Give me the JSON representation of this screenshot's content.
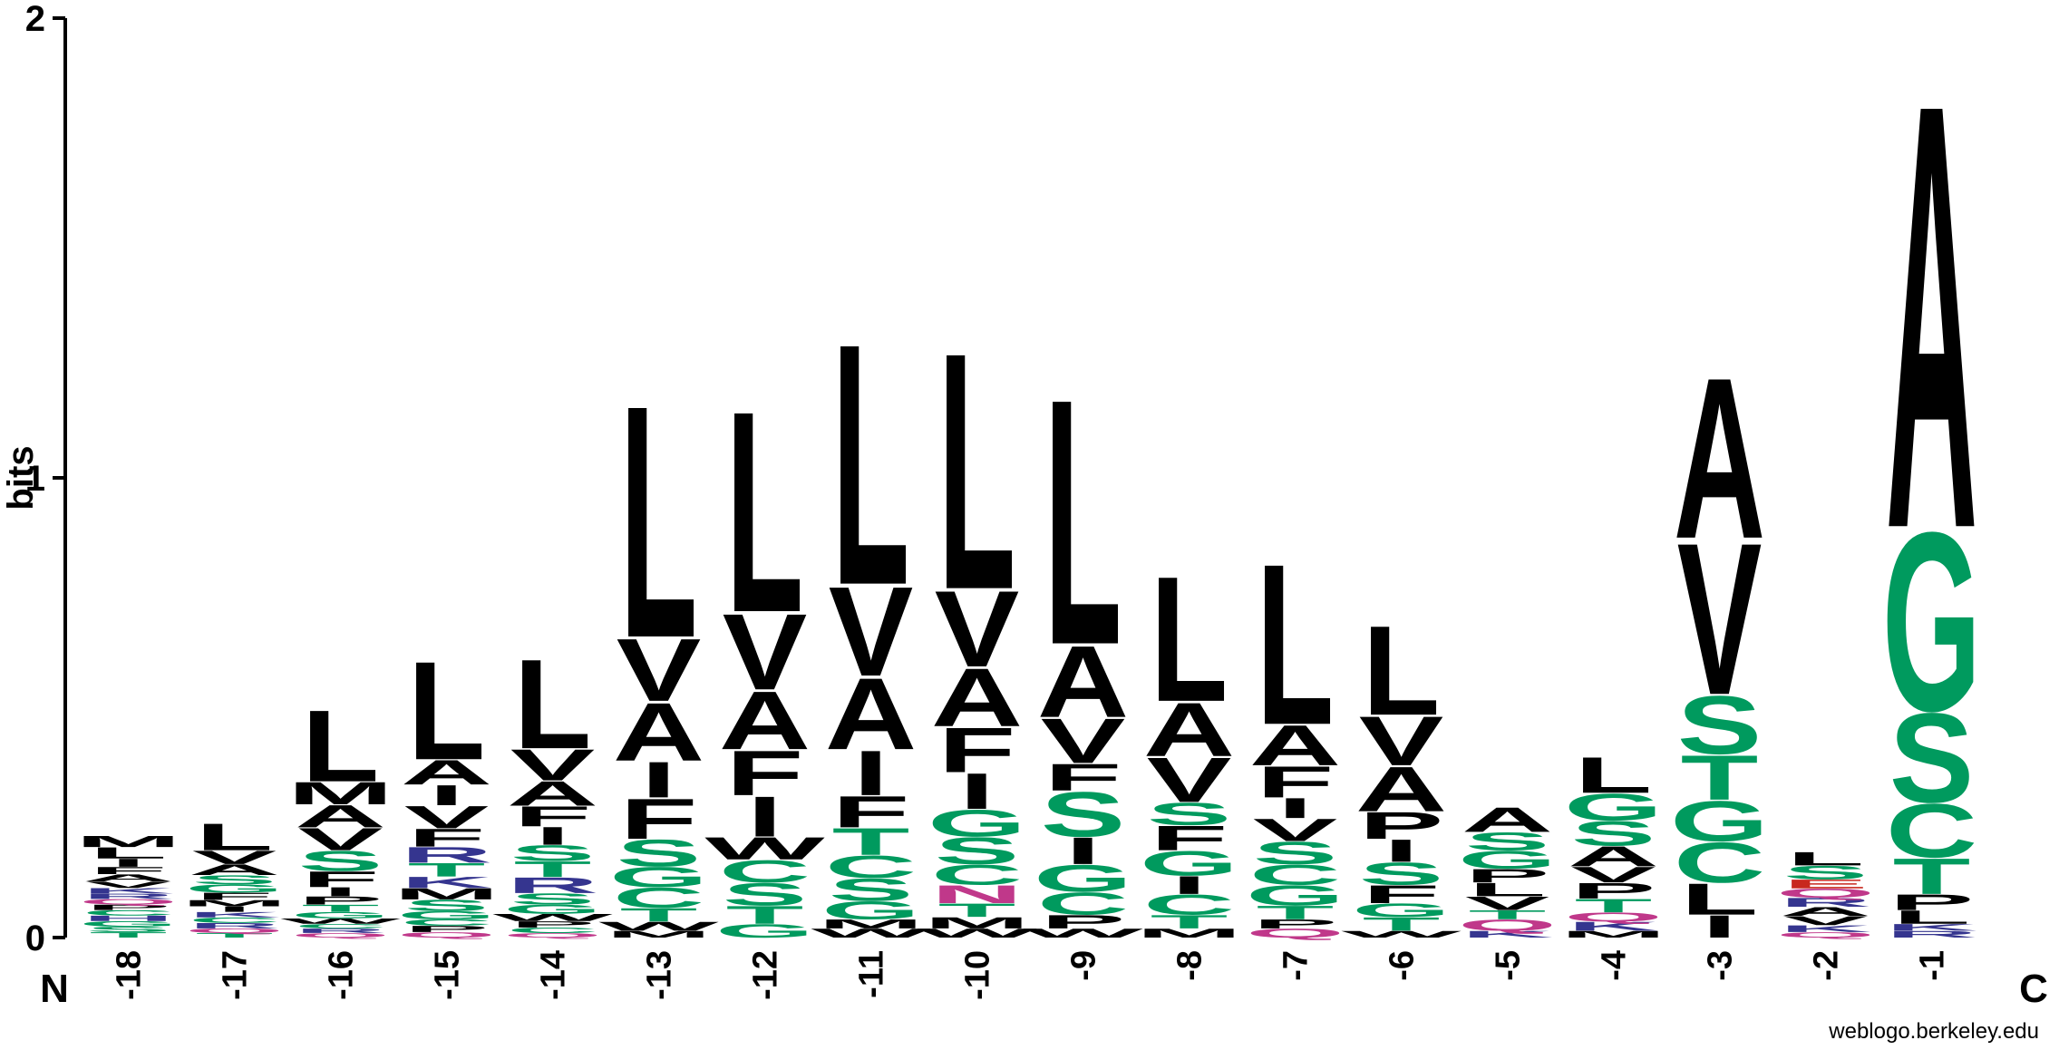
{
  "chart_data": {
    "type": "sequence_logo",
    "ylabel": "bits",
    "ylim": [
      0,
      2
    ],
    "yticks": [
      "0",
      "1",
      "2"
    ],
    "x_left_label": "N",
    "x_right_label": "C",
    "positions": [
      "-18",
      "-17",
      "-16",
      "-15",
      "-14",
      "-13",
      "-12",
      "-11",
      "-10",
      "-9",
      "-8",
      "-7",
      "-6",
      "-5",
      "-4",
      "-3",
      "-2",
      "-1"
    ],
    "colors": {
      "hydrophobic": "#000000",
      "polar": "#009a5e",
      "basic": "#35358f",
      "acidic": "#c8281e",
      "amide": "#c0388a"
    },
    "residue_class": {
      "A": "hydrophobic",
      "V": "hydrophobic",
      "L": "hydrophobic",
      "I": "hydrophobic",
      "F": "hydrophobic",
      "M": "hydrophobic",
      "W": "hydrophobic",
      "P": "hydrophobic",
      "G": "polar",
      "S": "polar",
      "T": "polar",
      "C": "polar",
      "Y": "polar",
      "K": "basic",
      "R": "basic",
      "H": "basic",
      "D": "acidic",
      "E": "acidic",
      "N": "amide",
      "Q": "amide"
    },
    "stacks": [
      {
        "position": "-18",
        "letters": [
          {
            "aa": "T",
            "h": 0.012
          },
          {
            "aa": "S",
            "h": 0.012
          },
          {
            "aa": "G",
            "h": 0.012
          },
          {
            "aa": "H",
            "h": 0.012
          },
          {
            "aa": "C",
            "h": 0.012
          },
          {
            "aa": "P",
            "h": 0.012
          },
          {
            "aa": "Q",
            "h": 0.012
          },
          {
            "aa": "R",
            "h": 0.012
          },
          {
            "aa": "K",
            "h": 0.012
          },
          {
            "aa": "V",
            "h": 0.014
          },
          {
            "aa": "A",
            "h": 0.016
          },
          {
            "aa": "F",
            "h": 0.016
          },
          {
            "aa": "I",
            "h": 0.018
          },
          {
            "aa": "L",
            "h": 0.025
          },
          {
            "aa": "M",
            "h": 0.025
          }
        ]
      },
      {
        "position": "-17",
        "letters": [
          {
            "aa": "T",
            "h": 0.01
          },
          {
            "aa": "Q",
            "h": 0.01
          },
          {
            "aa": "R",
            "h": 0.012
          },
          {
            "aa": "C",
            "h": 0.012
          },
          {
            "aa": "K",
            "h": 0.012
          },
          {
            "aa": "I",
            "h": 0.012
          },
          {
            "aa": "M",
            "h": 0.014
          },
          {
            "aa": "F",
            "h": 0.016
          },
          {
            "aa": "G",
            "h": 0.018
          },
          {
            "aa": "S",
            "h": 0.02
          },
          {
            "aa": "A",
            "h": 0.024
          },
          {
            "aa": "V",
            "h": 0.03
          },
          {
            "aa": "L",
            "h": 0.06
          }
        ]
      },
      {
        "position": "-16",
        "letters": [
          {
            "aa": "Q",
            "h": 0.01
          },
          {
            "aa": "R",
            "h": 0.01
          },
          {
            "aa": "C",
            "h": 0.01
          },
          {
            "aa": "W",
            "h": 0.012
          },
          {
            "aa": "G",
            "h": 0.014
          },
          {
            "aa": "T",
            "h": 0.016
          },
          {
            "aa": "P",
            "h": 0.018
          },
          {
            "aa": "I",
            "h": 0.02
          },
          {
            "aa": "F",
            "h": 0.035
          },
          {
            "aa": "S",
            "h": 0.045
          },
          {
            "aa": "V",
            "h": 0.05
          },
          {
            "aa": "A",
            "h": 0.05
          },
          {
            "aa": "M",
            "h": 0.05
          },
          {
            "aa": "L",
            "h": 0.16
          }
        ]
      },
      {
        "position": "-15",
        "letters": [
          {
            "aa": "Q",
            "h": 0.012
          },
          {
            "aa": "P",
            "h": 0.014
          },
          {
            "aa": "C",
            "h": 0.014
          },
          {
            "aa": "G",
            "h": 0.018
          },
          {
            "aa": "S",
            "h": 0.025
          },
          {
            "aa": "M",
            "h": 0.025
          },
          {
            "aa": "K",
            "h": 0.025
          },
          {
            "aa": "T",
            "h": 0.03
          },
          {
            "aa": "R",
            "h": 0.035
          },
          {
            "aa": "F",
            "h": 0.04
          },
          {
            "aa": "V",
            "h": 0.05
          },
          {
            "aa": "I",
            "h": 0.045
          },
          {
            "aa": "A",
            "h": 0.055
          },
          {
            "aa": "L",
            "h": 0.22
          }
        ]
      },
      {
        "position": "-14",
        "letters": [
          {
            "aa": "Q",
            "h": 0.01
          },
          {
            "aa": "C",
            "h": 0.012
          },
          {
            "aa": "P",
            "h": 0.014
          },
          {
            "aa": "W",
            "h": 0.016
          },
          {
            "aa": "G",
            "h": 0.02
          },
          {
            "aa": "S",
            "h": 0.025
          },
          {
            "aa": "R",
            "h": 0.035
          },
          {
            "aa": "T",
            "h": 0.035
          },
          {
            "aa": "S",
            "h": 0.035
          },
          {
            "aa": "I",
            "h": 0.04
          },
          {
            "aa": "F",
            "h": 0.045
          },
          {
            "aa": "A",
            "h": 0.055
          },
          {
            "aa": "V",
            "h": 0.07
          },
          {
            "aa": "L",
            "h": 0.2
          }
        ]
      },
      {
        "position": "-13",
        "letters": [
          {
            "aa": "M",
            "h": 0.015
          },
          {
            "aa": "W",
            "h": 0.02
          },
          {
            "aa": "T",
            "h": 0.03
          },
          {
            "aa": "C",
            "h": 0.045
          },
          {
            "aa": "G",
            "h": 0.045
          },
          {
            "aa": "S",
            "h": 0.06
          },
          {
            "aa": "F",
            "h": 0.09
          },
          {
            "aa": "I",
            "h": 0.08
          },
          {
            "aa": "A",
            "h": 0.13
          },
          {
            "aa": "V",
            "h": 0.14
          },
          {
            "aa": "L",
            "h": 0.52
          }
        ]
      },
      {
        "position": "-12",
        "letters": [
          {
            "aa": "G",
            "h": 0.03
          },
          {
            "aa": "T",
            "h": 0.04
          },
          {
            "aa": "S",
            "h": 0.05
          },
          {
            "aa": "C",
            "h": 0.05
          },
          {
            "aa": "W",
            "h": 0.05
          },
          {
            "aa": "I",
            "h": 0.09
          },
          {
            "aa": "F",
            "h": 0.1
          },
          {
            "aa": "A",
            "h": 0.13
          },
          {
            "aa": "V",
            "h": 0.17
          },
          {
            "aa": "L",
            "h": 0.45
          }
        ]
      },
      {
        "position": "-11",
        "letters": [
          {
            "aa": "W",
            "h": 0.02
          },
          {
            "aa": "M",
            "h": 0.02
          },
          {
            "aa": "G",
            "h": 0.04
          },
          {
            "aa": "S",
            "h": 0.05
          },
          {
            "aa": "C",
            "h": 0.05
          },
          {
            "aa": "T",
            "h": 0.06
          },
          {
            "aa": "F",
            "h": 0.07
          },
          {
            "aa": "I",
            "h": 0.1
          },
          {
            "aa": "A",
            "h": 0.16
          },
          {
            "aa": "V",
            "h": 0.2
          },
          {
            "aa": "L",
            "h": 0.54
          }
        ]
      },
      {
        "position": "-10",
        "letters": [
          {
            "aa": "W",
            "h": 0.02
          },
          {
            "aa": "M",
            "h": 0.025
          },
          {
            "aa": "T",
            "h": 0.03
          },
          {
            "aa": "N",
            "h": 0.04
          },
          {
            "aa": "C",
            "h": 0.045
          },
          {
            "aa": "S",
            "h": 0.06
          },
          {
            "aa": "G",
            "h": 0.06
          },
          {
            "aa": "I",
            "h": 0.08
          },
          {
            "aa": "F",
            "h": 0.1
          },
          {
            "aa": "A",
            "h": 0.13
          },
          {
            "aa": "V",
            "h": 0.17
          },
          {
            "aa": "L",
            "h": 0.53
          }
        ]
      },
      {
        "position": "-9",
        "letters": [
          {
            "aa": "W",
            "h": 0.02
          },
          {
            "aa": "P",
            "h": 0.03
          },
          {
            "aa": "C",
            "h": 0.05
          },
          {
            "aa": "G",
            "h": 0.06
          },
          {
            "aa": "I",
            "h": 0.06
          },
          {
            "aa": "S",
            "h": 0.1
          },
          {
            "aa": "F",
            "h": 0.06
          },
          {
            "aa": "V",
            "h": 0.1
          },
          {
            "aa": "A",
            "h": 0.16
          },
          {
            "aa": "L",
            "h": 0.55
          }
        ]
      },
      {
        "position": "-8",
        "letters": [
          {
            "aa": "M",
            "h": 0.02
          },
          {
            "aa": "T",
            "h": 0.03
          },
          {
            "aa": "C",
            "h": 0.045
          },
          {
            "aa": "I",
            "h": 0.04
          },
          {
            "aa": "G",
            "h": 0.055
          },
          {
            "aa": "F",
            "h": 0.055
          },
          {
            "aa": "S",
            "h": 0.05
          },
          {
            "aa": "V",
            "h": 0.1
          },
          {
            "aa": "A",
            "h": 0.12
          },
          {
            "aa": "L",
            "h": 0.28
          }
        ]
      },
      {
        "position": "-7",
        "letters": [
          {
            "aa": "Q",
            "h": 0.02
          },
          {
            "aa": "P",
            "h": 0.02
          },
          {
            "aa": "T",
            "h": 0.03
          },
          {
            "aa": "G",
            "h": 0.045
          },
          {
            "aa": "C",
            "h": 0.045
          },
          {
            "aa": "S",
            "h": 0.05
          },
          {
            "aa": "V",
            "h": 0.05
          },
          {
            "aa": "I",
            "h": 0.045
          },
          {
            "aa": "F",
            "h": 0.07
          },
          {
            "aa": "A",
            "h": 0.09
          },
          {
            "aa": "L",
            "h": 0.36
          }
        ]
      },
      {
        "position": "-6",
        "letters": [
          {
            "aa": "W",
            "h": 0.015
          },
          {
            "aa": "T",
            "h": 0.03
          },
          {
            "aa": "G",
            "h": 0.03
          },
          {
            "aa": "F",
            "h": 0.04
          },
          {
            "aa": "S",
            "h": 0.05
          },
          {
            "aa": "I",
            "h": 0.05
          },
          {
            "aa": "P",
            "h": 0.06
          },
          {
            "aa": "A",
            "h": 0.1
          },
          {
            "aa": "V",
            "h": 0.11
          },
          {
            "aa": "L",
            "h": 0.2
          }
        ]
      },
      {
        "position": "-5",
        "letters": [
          {
            "aa": "K",
            "h": 0.015
          },
          {
            "aa": "Q",
            "h": 0.025
          },
          {
            "aa": "T",
            "h": 0.02
          },
          {
            "aa": "V",
            "h": 0.03
          },
          {
            "aa": "L",
            "h": 0.03
          },
          {
            "aa": "P",
            "h": 0.03
          },
          {
            "aa": "G",
            "h": 0.04
          },
          {
            "aa": "S",
            "h": 0.04
          },
          {
            "aa": "A",
            "h": 0.055
          }
        ]
      },
      {
        "position": "-4",
        "letters": [
          {
            "aa": "M",
            "h": 0.015
          },
          {
            "aa": "K",
            "h": 0.02
          },
          {
            "aa": "Q",
            "h": 0.02
          },
          {
            "aa": "T",
            "h": 0.03
          },
          {
            "aa": "P",
            "h": 0.035
          },
          {
            "aa": "V",
            "h": 0.035
          },
          {
            "aa": "A",
            "h": 0.045
          },
          {
            "aa": "S",
            "h": 0.055
          },
          {
            "aa": "G",
            "h": 0.06
          },
          {
            "aa": "L",
            "h": 0.08
          }
        ]
      },
      {
        "position": "-3",
        "letters": [
          {
            "aa": "I",
            "h": 0.05
          },
          {
            "aa": "L",
            "h": 0.07
          },
          {
            "aa": "C",
            "h": 0.09
          },
          {
            "aa": "G",
            "h": 0.09
          },
          {
            "aa": "T",
            "h": 0.1
          },
          {
            "aa": "S",
            "h": 0.13
          },
          {
            "aa": "V",
            "h": 0.34
          },
          {
            "aa": "A",
            "h": 0.36
          }
        ]
      },
      {
        "position": "-2",
        "letters": [
          {
            "aa": "Q",
            "h": 0.012
          },
          {
            "aa": "K",
            "h": 0.015
          },
          {
            "aa": "V",
            "h": 0.02
          },
          {
            "aa": "A",
            "h": 0.02
          },
          {
            "aa": "R",
            "h": 0.02
          },
          {
            "aa": "Q",
            "h": 0.02
          },
          {
            "aa": "E",
            "h": 0.02
          },
          {
            "aa": "S",
            "h": 0.03
          },
          {
            "aa": "L",
            "h": 0.03
          }
        ]
      },
      {
        "position": "-1",
        "letters": [
          {
            "aa": "R",
            "h": 0.015
          },
          {
            "aa": "K",
            "h": 0.015
          },
          {
            "aa": "L",
            "h": 0.03
          },
          {
            "aa": "P",
            "h": 0.035
          },
          {
            "aa": "T",
            "h": 0.08
          },
          {
            "aa": "C",
            "h": 0.12
          },
          {
            "aa": "S",
            "h": 0.2
          },
          {
            "aa": "G",
            "h": 0.4
          },
          {
            "aa": "A",
            "h": 0.95
          }
        ]
      }
    ]
  },
  "footer": {
    "credit": "weblogo.berkeley.edu"
  }
}
